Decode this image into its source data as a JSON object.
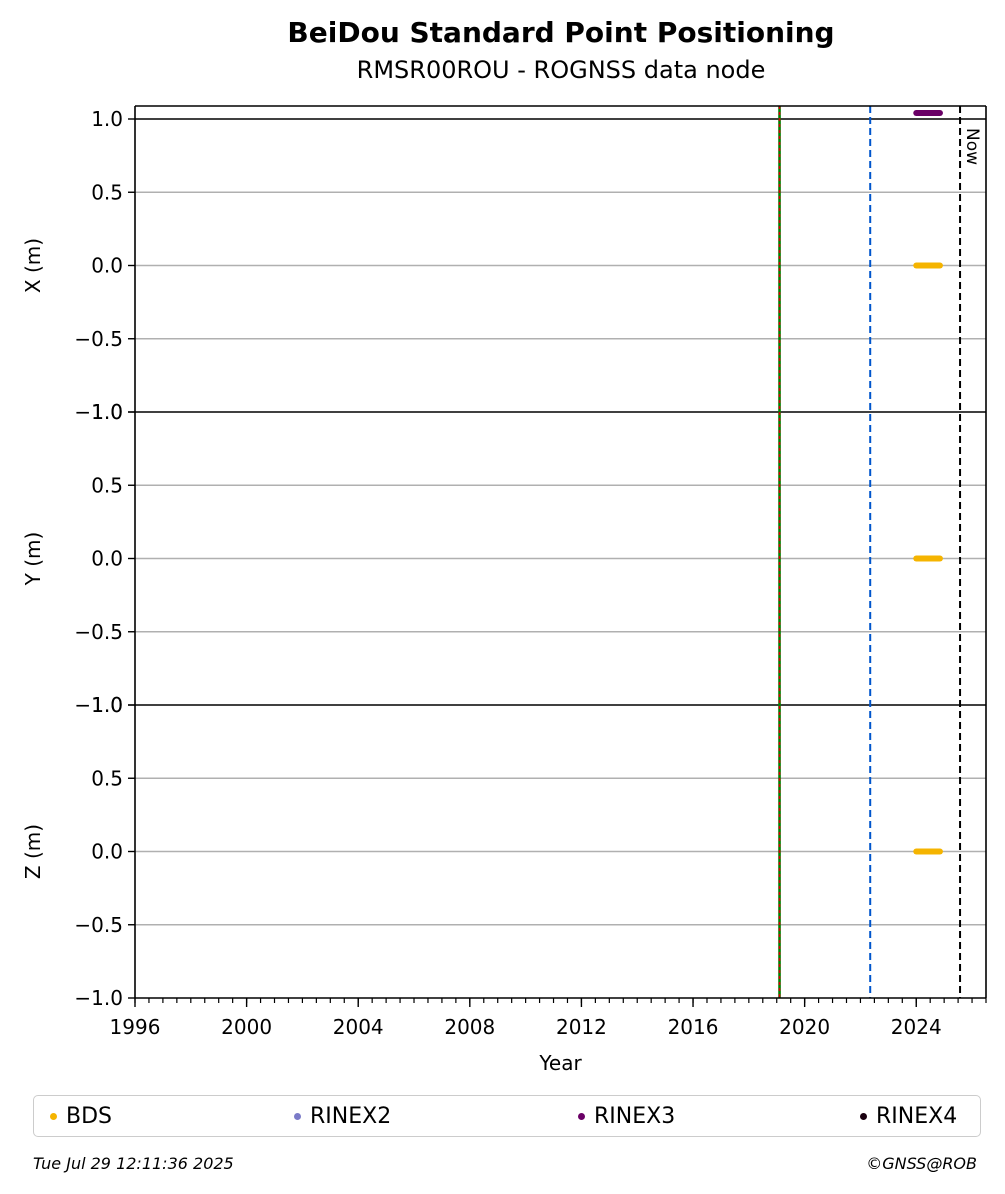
{
  "title": "BeiDou Standard Point Positioning",
  "subtitle": "RMSR00ROU - ROGNSS data node",
  "footer": {
    "timestamp": "Tue Jul 29 12:11:36 2025",
    "copyright": "©GNSS@ROB"
  },
  "legend": [
    {
      "label": "BDS",
      "color": "#f5b400"
    },
    {
      "label": "RINEX2",
      "color": "#7b7bc8"
    },
    {
      "label": "RINEX3",
      "color": "#6a0066"
    },
    {
      "label": "RINEX4",
      "color": "#1a0010"
    }
  ],
  "now_label": "Now",
  "chart_data": {
    "type": "scatter",
    "xlabel": "Year",
    "xlim": [
      1996,
      2026.5
    ],
    "x_ticks": [
      "1996",
      "2000",
      "2004",
      "2008",
      "2012",
      "2016",
      "2020",
      "2024"
    ],
    "grid": "horizontal",
    "legend_position": "bottom",
    "panels": [
      {
        "ylabel": "X (m)",
        "ylim": [
          -1.0,
          1.0
        ],
        "y_ticks": [
          "1.0",
          "0.5",
          "0.0",
          "−0.5",
          "−1.0"
        ]
      },
      {
        "ylabel": "Y (m)",
        "ylim": [
          -1.0,
          1.0
        ],
        "y_ticks": [
          "1.0",
          "0.5",
          "0.0",
          "−0.5",
          "−1.0"
        ]
      },
      {
        "ylabel": "Z (m)",
        "ylim": [
          -1.0,
          1.0
        ],
        "y_ticks": [
          "1.0",
          "0.5",
          "0.0",
          "−0.5",
          "−1.0"
        ]
      }
    ],
    "vertical_lines": [
      {
        "x": 2019.1,
        "style": "solid",
        "colors": [
          "#008000",
          "#d00000"
        ]
      },
      {
        "x": 2022.35,
        "style": "dashed",
        "colors": [
          "#0055cc"
        ]
      },
      {
        "x": 2025.57,
        "style": "dashed",
        "colors": [
          "#000000"
        ],
        "label": "Now"
      }
    ],
    "series": [
      {
        "name": "BDS",
        "color": "#f5b400",
        "x_start": 2024.0,
        "x_end": 2024.85,
        "panel_values": [
          0.0,
          0.0,
          0.0
        ]
      },
      {
        "name": "RINEX3",
        "color": "#6a0066",
        "x_start": 2024.0,
        "x_end": 2024.85,
        "panel": 0,
        "position": "top"
      }
    ]
  }
}
